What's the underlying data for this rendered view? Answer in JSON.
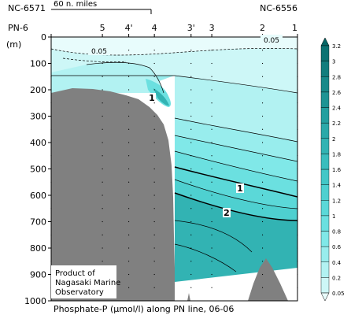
{
  "chart_data": {
    "type": "heatmap",
    "title": "Phosphate-P (μmol/l) along PN line, 06-06",
    "title_parts": [
      "Phosphate-P (",
      "μ",
      "mol/l) along PN line, 06-06"
    ],
    "ylabel": "(m)",
    "ylim": [
      1000,
      0
    ],
    "y_ticks": [
      "0",
      "100",
      "200",
      "300",
      "400",
      "500",
      "600",
      "700",
      "800",
      "900",
      "1000"
    ],
    "y_tick_values": [
      0,
      100,
      200,
      300,
      400,
      500,
      600,
      700,
      800,
      900,
      1000
    ],
    "stations": [
      {
        "label": "PN-6",
        "pos": 0.0
      },
      {
        "label": "5",
        "pos": 0.208
      },
      {
        "label": "4'",
        "pos": 0.315
      },
      {
        "label": "4",
        "pos": 0.419
      },
      {
        "label": "3'",
        "pos": 0.568
      },
      {
        "label": "3",
        "pos": 0.652
      },
      {
        "label": "2",
        "pos": 0.858
      },
      {
        "label": "1",
        "pos": 1.0
      }
    ],
    "end_labels": {
      "left": "NC-6571",
      "right": "NC-6556"
    },
    "scale_bar_label": "60 n. miles",
    "colorbar": {
      "ticks": [
        "0.05",
        "0.2",
        "0.4",
        "0.6",
        "0.8",
        "1",
        "1.2",
        "1.4",
        "1.6",
        "1.8",
        "2",
        "2.2",
        "2.4",
        "2.6",
        "2.8",
        "3",
        "3.2"
      ],
      "colors": [
        "#e8fcfc",
        "#cdf7f7",
        "#b2f2f2",
        "#98eded",
        "#80e8e8",
        "#6be0e0",
        "#5bd8d8",
        "#4ed0d0",
        "#43c7c7",
        "#3abdbd",
        "#32b3b3",
        "#2ba9a9",
        "#249f9f",
        "#1e9494",
        "#188989",
        "#127d7d",
        "#0c7272",
        "#066666"
      ]
    },
    "contour_labels": [
      "0.05",
      "0.05",
      "1",
      "1",
      "2"
    ],
    "credit": [
      "Product of",
      "Nagasaki Marine",
      "Observatory"
    ],
    "colors": {
      "seabed": "#808080",
      "contour": "#000000"
    }
  }
}
